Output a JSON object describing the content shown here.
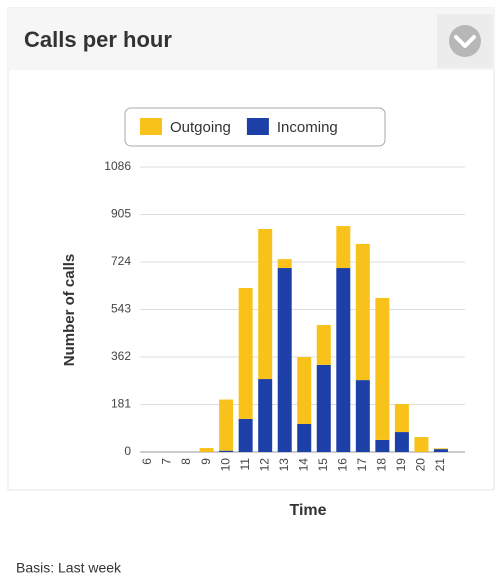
{
  "chart_data": {
    "type": "bar",
    "stacked": true,
    "title": "Calls per hour",
    "x_label": "Time",
    "y_label": "Number of calls",
    "categories": [
      "6",
      "7",
      "8",
      "9",
      "10",
      "11",
      "12",
      "13",
      "14",
      "15",
      "16",
      "17",
      "18",
      "19",
      "20",
      "21"
    ],
    "series": [
      {
        "name": "Outgoing",
        "color": "#f9c21a",
        "values": [
          0,
          0,
          0,
          15,
          195,
          499,
          572,
          34,
          255,
          152,
          160,
          519,
          541,
          107,
          57,
          3
        ]
      },
      {
        "name": "Incoming",
        "color": "#1c3fa8",
        "values": [
          0,
          0,
          0,
          0,
          5,
          126,
          278,
          701,
          107,
          332,
          701,
          274,
          46,
          76,
          0,
          11
        ]
      }
    ],
    "ylim": [
      0,
      1086
    ],
    "yticks": [
      0,
      181,
      362,
      543,
      724,
      905,
      1086
    ],
    "grid": true,
    "legend": "top"
  },
  "footer": "Basis: Last week"
}
